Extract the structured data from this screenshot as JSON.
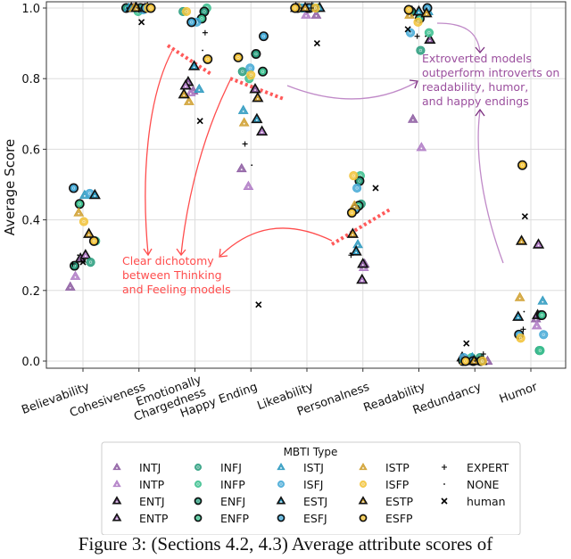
{
  "chart_data": {
    "type": "scatter",
    "ylabel": "Average Score",
    "xlabel": "",
    "ylim": [
      0.0,
      1.0
    ],
    "yticks": [
      "0.0",
      "0.2",
      "0.4",
      "0.6",
      "0.8",
      "1.0"
    ],
    "grid": true,
    "categories": [
      "Believability",
      "Cohesiveness",
      "Emotionally\nChargedness",
      "Happy Ending",
      "Likeability",
      "Personalness",
      "Readability",
      "Redundancy",
      "Humor"
    ],
    "legend": {
      "title": "MBTI Type",
      "placement": "bottom"
    },
    "series": [
      {
        "name": "INTJ",
        "color": "#8e5ea2",
        "marker": "triangle",
        "edge": "none",
        "values": [
          0.21,
          1.0,
          0.765,
          0.545,
          0.98,
          0.275,
          0.685,
          0.0,
          0.12
        ]
      },
      {
        "name": "INTP",
        "color": "#b07cc6",
        "marker": "triangle",
        "edge": "none",
        "values": [
          0.24,
          1.0,
          0.76,
          0.495,
          0.98,
          0.265,
          0.605,
          0.0,
          0.1
        ]
      },
      {
        "name": "ENTJ",
        "color": "#8e5ea2",
        "marker": "triangle",
        "edge": "black",
        "values": [
          0.29,
          1.0,
          0.79,
          0.77,
          1.0,
          0.275,
          0.91,
          0.0,
          0.13
        ]
      },
      {
        "name": "ENTP",
        "color": "#b07cc6",
        "marker": "triangle",
        "edge": "black",
        "values": [
          0.3,
          1.0,
          0.78,
          0.65,
          1.0,
          0.23,
          0.99,
          0.01,
          0.33
        ]
      },
      {
        "name": "INFJ",
        "color": "#2a9d7e",
        "marker": "circle",
        "edge": "none",
        "values": [
          0.28,
          1.0,
          0.99,
          0.82,
          1.0,
          0.445,
          0.88,
          0.01,
          0.03
        ]
      },
      {
        "name": "INFP",
        "color": "#3cbf8f",
        "marker": "circle",
        "edge": "none",
        "values": [
          0.34,
          0.99,
          1.0,
          0.8,
          1.0,
          0.525,
          0.93,
          0.01,
          0.03
        ]
      },
      {
        "name": "ENFJ",
        "color": "#2a9d7e",
        "marker": "circle",
        "edge": "black",
        "values": [
          0.27,
          1.0,
          0.99,
          0.87,
          1.0,
          0.51,
          0.99,
          0.0,
          0.13
        ]
      },
      {
        "name": "ENFP",
        "color": "#3cbf8f",
        "marker": "circle",
        "edge": "black",
        "values": [
          0.445,
          1.0,
          0.97,
          0.82,
          1.0,
          0.44,
          0.97,
          0.0,
          0.13
        ]
      },
      {
        "name": "ISTJ",
        "color": "#2e9ac0",
        "marker": "triangle",
        "edge": "none",
        "values": [
          0.47,
          1.0,
          0.77,
          0.71,
          1.0,
          0.33,
          0.99,
          0.01,
          0.17
        ]
      },
      {
        "name": "ISFJ",
        "color": "#45a9d6",
        "marker": "circle",
        "edge": "none",
        "values": [
          0.475,
          0.995,
          0.96,
          0.83,
          1.0,
          0.49,
          0.93,
          0.01,
          0.075
        ]
      },
      {
        "name": "ESTJ",
        "color": "#2e9ac0",
        "marker": "triangle",
        "edge": "black",
        "values": [
          0.47,
          1.0,
          0.835,
          0.685,
          1.0,
          0.31,
          0.99,
          0.0,
          0.125
        ]
      },
      {
        "name": "ESFJ",
        "color": "#45a9d6",
        "marker": "circle",
        "edge": "black",
        "values": [
          0.49,
          1.0,
          0.96,
          0.92,
          1.0,
          0.43,
          1.0,
          0.0,
          0.075
        ]
      },
      {
        "name": "ISTP",
        "color": "#d0a030",
        "marker": "triangle",
        "edge": "none",
        "values": [
          0.42,
          1.0,
          0.735,
          0.675,
          1.0,
          0.44,
          0.98,
          0.0,
          0.18
        ]
      },
      {
        "name": "ISFP",
        "color": "#f2c33a",
        "marker": "circle",
        "edge": "none",
        "values": [
          0.395,
          1.0,
          0.99,
          0.81,
          1.0,
          0.525,
          0.96,
          0.0,
          0.065
        ]
      },
      {
        "name": "ESTP",
        "color": "#d0a030",
        "marker": "triangle",
        "edge": "black",
        "values": [
          0.36,
          1.0,
          0.755,
          0.745,
          1.0,
          0.36,
          0.985,
          0.0,
          0.34
        ]
      },
      {
        "name": "ESFP",
        "color": "#f2c33a",
        "marker": "circle",
        "edge": "black",
        "values": [
          0.34,
          1.0,
          0.855,
          0.86,
          1.0,
          0.42,
          0.995,
          0.0,
          0.555
        ]
      },
      {
        "name": "EXPERT",
        "color": "#000000",
        "marker": "plus",
        "edge": "none",
        "values": [
          0.275,
          1.0,
          0.93,
          0.615,
          1.0,
          0.3,
          0.92,
          0.02,
          0.09
        ]
      },
      {
        "name": "NONE",
        "color": "#000000",
        "marker": "point",
        "edge": "none",
        "values": [
          0.3,
          1.0,
          0.88,
          0.555,
          1.0,
          0.305,
          0.92,
          0.0,
          0.14
        ]
      },
      {
        "name": "human",
        "color": "#000000",
        "marker": "x",
        "edge": "none",
        "values": [
          0.28,
          0.96,
          0.68,
          0.16,
          0.9,
          0.49,
          0.94,
          0.05,
          0.41
        ]
      }
    ],
    "annotations": [
      {
        "text": [
          "Clear dichotomy",
          "between Thinking",
          "and Feeling models"
        ],
        "color": "#ff4d4d"
      },
      {
        "text": [
          "Extroverted models",
          "outperform introverts on",
          "readability, humor,",
          "and happy endings"
        ],
        "color": "#9b4f9e"
      }
    ]
  },
  "caption": "Figure 3: (Sections 4.2, 4.3) Average attribute scores of"
}
